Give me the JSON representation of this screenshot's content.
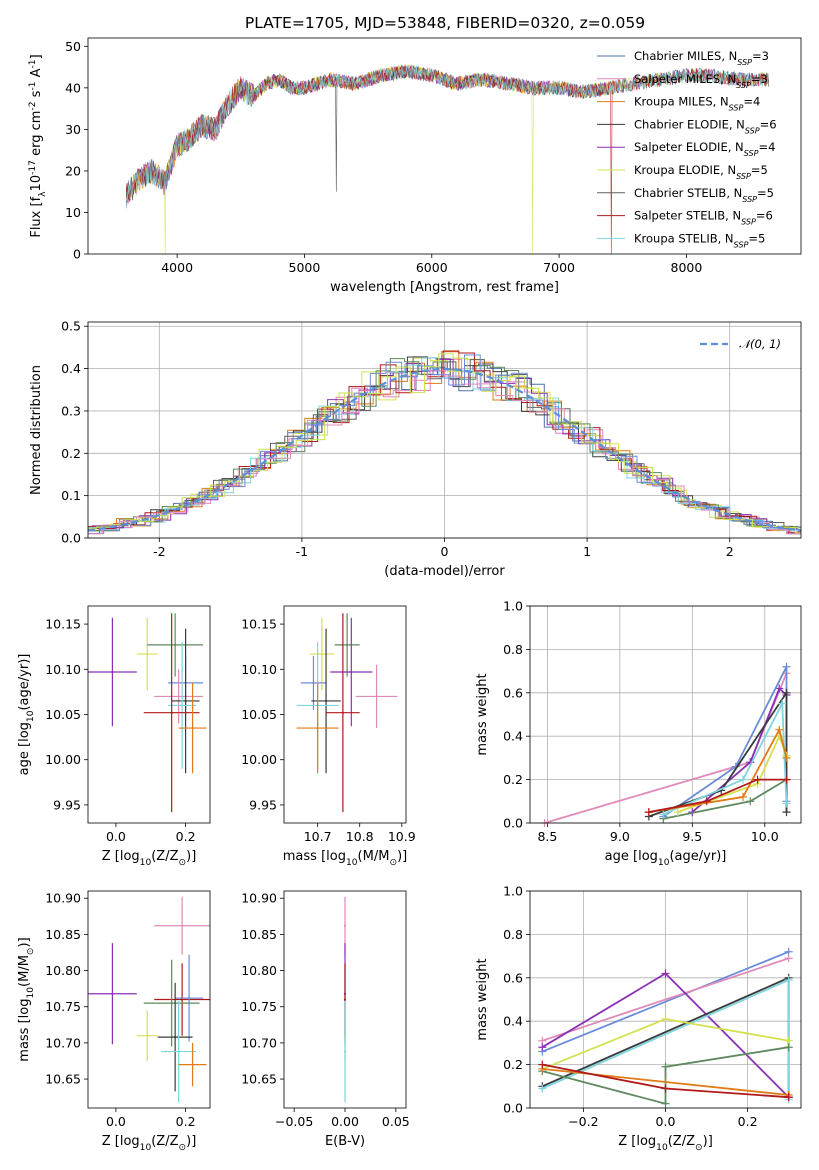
{
  "figure": {
    "title": "PLATE=1705, MJD=53848, FIBERID=0320, z=0.059"
  },
  "colors": {
    "series": [
      "#4c72b0",
      "#dd84c0",
      "#e07b16",
      "#3a3a3a",
      "#8b2fb5",
      "#d5e04f",
      "#606060",
      "#b11a1a",
      "#7fd4e0"
    ],
    "extra": [
      "#5f8a5f",
      "#6a8cd8",
      "#e08ab8",
      "#c9e04a"
    ]
  },
  "chart_data": [
    {
      "id": "spectrum",
      "type": "line",
      "xlabel": "wavelength [Angstrom, rest frame]",
      "ylabel": "Flux [f$_\\lambda$10$^{-17}$ erg cm$^{-2}$ s$^{-1}$ A$^{-1}$]",
      "xlim": [
        3300,
        8900
      ],
      "ylim": [
        0,
        52
      ],
      "xticks": [
        4000,
        5000,
        6000,
        7000,
        8000
      ],
      "yticks": [
        0,
        10,
        20,
        30,
        40,
        50
      ],
      "grid": false,
      "legend_position": "top-right",
      "legend": [
        {
          "label": "Chabrier MILES, N",
          "sub": "SSP",
          "tail": "=3"
        },
        {
          "label": "Salpeter MILES, N",
          "sub": "SSP",
          "tail": "=3"
        },
        {
          "label": "Kroupa MILES, N",
          "sub": "SSP",
          "tail": "=4"
        },
        {
          "label": "Chabrier ELODIE, N",
          "sub": "SSP",
          "tail": "=6"
        },
        {
          "label": "Salpeter ELODIE, N",
          "sub": "SSP",
          "tail": "=4"
        },
        {
          "label": "Kroupa ELODIE, N",
          "sub": "SSP",
          "tail": "=5"
        },
        {
          "label": "Chabrier STELIB, N",
          "sub": "SSP",
          "tail": "=5"
        },
        {
          "label": "Salpeter STELIB, N",
          "sub": "SSP",
          "tail": "=6"
        },
        {
          "label": "Kroupa STELIB, N",
          "sub": "SSP",
          "tail": "=5"
        }
      ],
      "x": [
        3600,
        3700,
        3800,
        3900,
        4000,
        4100,
        4200,
        4300,
        4400,
        4500,
        4600,
        4700,
        4800,
        4900,
        5000,
        5200,
        5400,
        5600,
        5800,
        6000,
        6200,
        6400,
        6600,
        6800,
        7000,
        7200,
        7400,
        7600,
        7800,
        8000,
        8200,
        8400,
        8600
      ],
      "y": [
        14,
        18,
        20,
        17,
        26,
        28,
        31,
        30,
        36,
        40,
        38,
        41,
        42,
        40,
        40,
        42,
        41,
        43,
        44,
        43,
        41,
        42,
        41,
        40,
        40,
        39,
        40,
        41,
        42,
        43,
        43,
        42,
        42
      ]
    },
    {
      "id": "residuals",
      "type": "histogram",
      "xlabel": "(data-model)/error",
      "ylabel": "Normed distribution",
      "xlim": [
        -2.5,
        2.5
      ],
      "ylim": [
        0,
        0.51
      ],
      "xticks": [
        -2,
        -1,
        0,
        1,
        2
      ],
      "yticks": [
        0.0,
        0.1,
        0.2,
        0.3,
        0.4,
        0.5
      ],
      "ytick_labels": [
        "0.0",
        "0.1",
        "0.2",
        "0.3",
        "0.4",
        "0.5"
      ],
      "grid": true,
      "legend_position": "top-right",
      "legend": [
        {
          "label": "𝒩(0, 1)"
        }
      ],
      "gaussian": {
        "mean": 0,
        "sigma": 1
      }
    },
    {
      "id": "age-vs-z",
      "type": "errorbar",
      "xlabel": "Z [log$_{10}$(Z/Z$_\\odot$)]",
      "ylabel": "age  [log$_{10}$(age/yr)]",
      "xlim": [
        -0.08,
        0.27
      ],
      "ylim": [
        9.93,
        10.17
      ],
      "xticks": [
        0.0,
        0.2
      ],
      "xtick_labels": [
        "0.0",
        "0.2"
      ],
      "yticks": [
        9.95,
        10.0,
        10.05,
        10.1,
        10.15
      ],
      "ytick_labels": [
        "9.95",
        "10.00",
        "10.05",
        "10.10",
        "10.15"
      ],
      "points": [
        {
          "x": -0.01,
          "y": 10.097,
          "xerr": 0.07,
          "yerr": 0.06,
          "c": "#8b2fb5"
        },
        {
          "x": 0.09,
          "y": 10.117,
          "xerr": 0.03,
          "yerr": 0.04,
          "c": "#d5e04f"
        },
        {
          "x": 0.17,
          "y": 10.127,
          "xerr": 0.08,
          "yerr": 0.035,
          "c": "#5f8a5f"
        },
        {
          "x": 0.2,
          "y": 10.085,
          "xerr": 0.05,
          "yerr": 0.03,
          "c": "#6a8cd8"
        },
        {
          "x": 0.18,
          "y": 10.07,
          "xerr": 0.07,
          "yerr": 0.03,
          "c": "#e08ab8"
        },
        {
          "x": 0.2,
          "y": 10.065,
          "xerr": 0.04,
          "yerr": 0.08,
          "c": "#3a3a3a"
        },
        {
          "x": 0.19,
          "y": 10.06,
          "xerr": 0.04,
          "yerr": 0.07,
          "c": "#7fd4e0"
        },
        {
          "x": 0.16,
          "y": 10.052,
          "xerr": 0.08,
          "yerr": 0.11,
          "c": "#b11a1a"
        },
        {
          "x": 0.22,
          "y": 10.035,
          "xerr": 0.04,
          "yerr": 0.05,
          "c": "#e07b16"
        }
      ]
    },
    {
      "id": "age-vs-mass",
      "type": "errorbar",
      "xlabel": "mass [log$_{10}$(M/M$_\\odot$)]",
      "ylabel": "",
      "xlim": [
        10.62,
        10.91
      ],
      "ylim": [
        9.93,
        10.17
      ],
      "xticks": [
        10.7,
        10.8,
        10.9
      ],
      "xtick_labels": [
        "10.7",
        "10.8",
        "10.9"
      ],
      "yticks": [
        9.95,
        10.0,
        10.05,
        10.1,
        10.15
      ],
      "ytick_labels": [
        "9.95",
        "10.00",
        "10.05",
        "10.10",
        "10.15"
      ],
      "points": [
        {
          "x": 10.71,
          "y": 10.117,
          "xerr": 0.03,
          "yerr": 0.04,
          "c": "#d5e04f"
        },
        {
          "x": 10.77,
          "y": 10.127,
          "xerr": 0.03,
          "yerr": 0.035,
          "c": "#5f8a5f"
        },
        {
          "x": 10.78,
          "y": 10.097,
          "xerr": 0.05,
          "yerr": 0.06,
          "c": "#8b2fb5"
        },
        {
          "x": 10.84,
          "y": 10.07,
          "xerr": 0.05,
          "yerr": 0.035,
          "c": "#e08ab8"
        },
        {
          "x": 10.69,
          "y": 10.085,
          "xerr": 0.03,
          "yerr": 0.03,
          "c": "#6a8cd8"
        },
        {
          "x": 10.72,
          "y": 10.065,
          "xerr": 0.035,
          "yerr": 0.08,
          "c": "#3a3a3a"
        },
        {
          "x": 10.7,
          "y": 10.06,
          "xerr": 0.05,
          "yerr": 0.07,
          "c": "#7fd4e0"
        },
        {
          "x": 10.76,
          "y": 10.052,
          "xerr": 0.04,
          "yerr": 0.11,
          "c": "#b11a1a"
        },
        {
          "x": 10.7,
          "y": 10.035,
          "xerr": 0.05,
          "yerr": 0.05,
          "c": "#e07b16"
        }
      ]
    },
    {
      "id": "weight-vs-age",
      "type": "line",
      "xlabel": "age  [log$_{10}$(age/yr)]",
      "ylabel": "mass weight",
      "xlim": [
        8.38,
        10.25
      ],
      "ylim": [
        0,
        1.0
      ],
      "xticks": [
        8.5,
        9.0,
        9.5,
        10.0
      ],
      "xtick_labels": [
        "8.5",
        "9.0",
        "9.5",
        "10.0"
      ],
      "yticks": [
        0.0,
        0.2,
        0.4,
        0.6,
        0.8,
        1.0
      ],
      "ytick_labels": [
        "0.0",
        "0.2",
        "0.4",
        "0.6",
        "0.8",
        "1.0"
      ],
      "grid": true,
      "series": [
        {
          "c": "#e08ab8",
          "x": [
            8.48,
            9.9,
            10.15
          ],
          "y": [
            0.0,
            0.28,
            0.69
          ]
        },
        {
          "c": "#8b2fb5",
          "x": [
            9.5,
            9.9,
            10.1,
            10.15
          ],
          "y": [
            0.05,
            0.28,
            0.62,
            0.59
          ]
        },
        {
          "c": "#6a8cd8",
          "x": [
            9.3,
            9.8,
            10.15,
            10.15
          ],
          "y": [
            0.03,
            0.26,
            0.72,
            0.1
          ]
        },
        {
          "c": "#5f8a5f",
          "x": [
            9.3,
            9.9,
            10.15
          ],
          "y": [
            0.02,
            0.1,
            0.2
          ]
        },
        {
          "c": "#3a3a3a",
          "x": [
            9.2,
            9.7,
            10.15,
            10.15
          ],
          "y": [
            0.03,
            0.15,
            0.6,
            0.05
          ]
        },
        {
          "c": "#7fd4e0",
          "x": [
            9.3,
            9.85,
            10.12,
            10.15
          ],
          "y": [
            0.04,
            0.2,
            0.55,
            0.09
          ]
        },
        {
          "c": "#d5e04f",
          "x": [
            9.4,
            9.95,
            10.1,
            10.15
          ],
          "y": [
            0.05,
            0.18,
            0.4,
            0.31
          ]
        },
        {
          "c": "#e07b16",
          "x": [
            9.2,
            9.85,
            10.1,
            10.15
          ],
          "y": [
            0.05,
            0.12,
            0.43,
            0.3
          ]
        },
        {
          "c": "#b11a1a",
          "x": [
            9.2,
            9.6,
            9.95,
            10.15
          ],
          "y": [
            0.05,
            0.1,
            0.2,
            0.2
          ]
        }
      ]
    },
    {
      "id": "mass-vs-z",
      "type": "errorbar",
      "xlabel": "Z [log$_{10}$(Z/Z$_\\odot$)]",
      "ylabel": "mass [log$_{10}$(M/M$_\\odot$)]",
      "xlim": [
        -0.08,
        0.27
      ],
      "ylim": [
        10.61,
        10.91
      ],
      "xticks": [
        0.0,
        0.2
      ],
      "xtick_labels": [
        "0.0",
        "0.2"
      ],
      "yticks": [
        10.65,
        10.7,
        10.75,
        10.8,
        10.85,
        10.9
      ],
      "ytick_labels": [
        "10.65",
        "10.70",
        "10.75",
        "10.80",
        "10.85",
        "10.90"
      ],
      "points": [
        {
          "x": -0.01,
          "y": 10.768,
          "xerr": 0.07,
          "yerr": 0.07,
          "c": "#8b2fb5"
        },
        {
          "x": 0.19,
          "y": 10.862,
          "xerr": 0.08,
          "yerr": 0.04,
          "c": "#e08ab8"
        },
        {
          "x": 0.19,
          "y": 10.76,
          "xerr": 0.08,
          "yerr": 0.05,
          "c": "#b11a1a"
        },
        {
          "x": 0.21,
          "y": 10.762,
          "xerr": 0.04,
          "yerr": 0.06,
          "c": "#6a8cd8"
        },
        {
          "x": 0.16,
          "y": 10.755,
          "xerr": 0.08,
          "yerr": 0.06,
          "c": "#5f8a5f"
        },
        {
          "x": 0.09,
          "y": 10.71,
          "xerr": 0.03,
          "yerr": 0.035,
          "c": "#d5e04f"
        },
        {
          "x": 0.17,
          "y": 10.708,
          "xerr": 0.05,
          "yerr": 0.075,
          "c": "#3a3a3a"
        },
        {
          "x": 0.18,
          "y": 10.688,
          "xerr": 0.05,
          "yerr": 0.07,
          "c": "#7fd4e0"
        },
        {
          "x": 0.22,
          "y": 10.67,
          "xerr": 0.04,
          "yerr": 0.03,
          "c": "#e07b16"
        }
      ]
    },
    {
      "id": "mass-vs-ebv",
      "type": "errorbar",
      "xlabel": "E(B-V)",
      "ylabel": "",
      "xlim": [
        -0.06,
        0.06
      ],
      "ylim": [
        10.61,
        10.91
      ],
      "xticks": [
        -0.05,
        0.0,
        0.05
      ],
      "xtick_labels": [
        "−0.05",
        "0.00",
        "0.05"
      ],
      "yticks": [
        10.65,
        10.7,
        10.75,
        10.8,
        10.85,
        10.9
      ],
      "ytick_labels": [
        "10.65",
        "10.70",
        "10.75",
        "10.80",
        "10.85",
        "10.90"
      ],
      "points": [
        {
          "x": 0.0,
          "y": 10.862,
          "xerr": 0,
          "yerr": 0.04,
          "c": "#e08ab8"
        },
        {
          "x": 0.0,
          "y": 10.768,
          "xerr": 0,
          "yerr": 0.07,
          "c": "#8b2fb5"
        },
        {
          "x": 0.0,
          "y": 10.76,
          "xerr": 0,
          "yerr": 0.05,
          "c": "#b11a1a"
        },
        {
          "x": 0.0,
          "y": 10.71,
          "xerr": 0,
          "yerr": 0.035,
          "c": "#d5e04f"
        },
        {
          "x": 0.0,
          "y": 10.688,
          "xerr": 0,
          "yerr": 0.07,
          "c": "#7fd4e0"
        }
      ]
    },
    {
      "id": "weight-vs-z",
      "type": "line",
      "xlabel": "Z [log$_{10}$(Z/Z$_\\odot$)]",
      "ylabel": "mass weight",
      "xlim": [
        -0.33,
        0.33
      ],
      "ylim": [
        0,
        1.0
      ],
      "xticks": [
        -0.2,
        0.0,
        0.2
      ],
      "xtick_labels": [
        "−0.2",
        "0.0",
        "0.2"
      ],
      "yticks": [
        0.0,
        0.2,
        0.4,
        0.6,
        0.8,
        1.0
      ],
      "ytick_labels": [
        "0.0",
        "0.2",
        "0.4",
        "0.6",
        "0.8",
        "1.0"
      ],
      "grid": true,
      "series": [
        {
          "c": "#6a8cd8",
          "x": [
            -0.3,
            0.3
          ],
          "y": [
            0.26,
            0.72
          ]
        },
        {
          "c": "#e08ab8",
          "x": [
            -0.3,
            0.3
          ],
          "y": [
            0.31,
            0.69
          ]
        },
        {
          "c": "#8b2fb5",
          "x": [
            -0.3,
            0.0,
            0.3
          ],
          "y": [
            0.28,
            0.62,
            0.05
          ]
        },
        {
          "c": "#3a3a3a",
          "x": [
            -0.3,
            0.3,
            0.3
          ],
          "y": [
            0.1,
            0.6,
            0.05
          ]
        },
        {
          "c": "#7fd4e0",
          "x": [
            -0.3,
            0.3,
            0.3
          ],
          "y": [
            0.09,
            0.59,
            0.04
          ]
        },
        {
          "c": "#d5e04f",
          "x": [
            -0.3,
            0.0,
            0.3
          ],
          "y": [
            0.18,
            0.41,
            0.31
          ]
        },
        {
          "c": "#5f8a5f",
          "x": [
            -0.3,
            0.0,
            0.0,
            0.3
          ],
          "y": [
            0.17,
            0.02,
            0.19,
            0.28
          ]
        },
        {
          "c": "#e07b16",
          "x": [
            -0.3,
            0.0,
            0.3
          ],
          "y": [
            0.18,
            0.12,
            0.06
          ]
        },
        {
          "c": "#b11a1a",
          "x": [
            -0.3,
            0.0,
            0.3
          ],
          "y": [
            0.2,
            0.09,
            0.05
          ]
        }
      ]
    }
  ]
}
